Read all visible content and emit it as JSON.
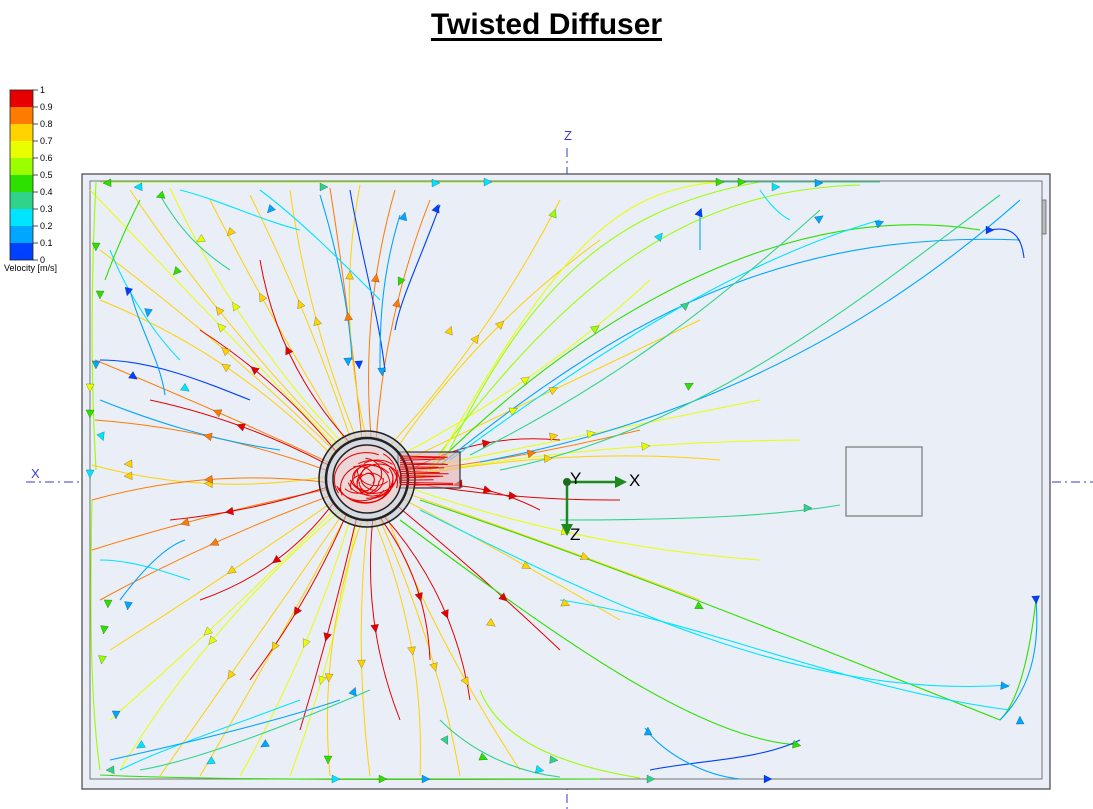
{
  "title": "Twisted Diffuser",
  "legend": {
    "label": "Velocity [m/s]",
    "ticks": [
      "1",
      "0.9",
      "0.8",
      "0.7",
      "0.6",
      "0.5",
      "0.4",
      "0.3",
      "0.2",
      "0.1",
      "0"
    ],
    "colors": [
      "#e60000",
      "#ff7a00",
      "#ffd200",
      "#e9ff00",
      "#9bff00",
      "#2ee000",
      "#2fd48a",
      "#00e5ff",
      "#00a6ff",
      "#0040ff"
    ]
  },
  "axes": {
    "x_label": "X",
    "z_label": "Z",
    "triad": {
      "y": "Y",
      "x": "X",
      "z": "Z"
    }
  },
  "colors": {
    "room_fill": "#e9eef7",
    "room_stroke": "#555555",
    "axis_line": "#3a3acc",
    "triad": "#1e8a1e",
    "high_velocity": "#e60000"
  }
}
